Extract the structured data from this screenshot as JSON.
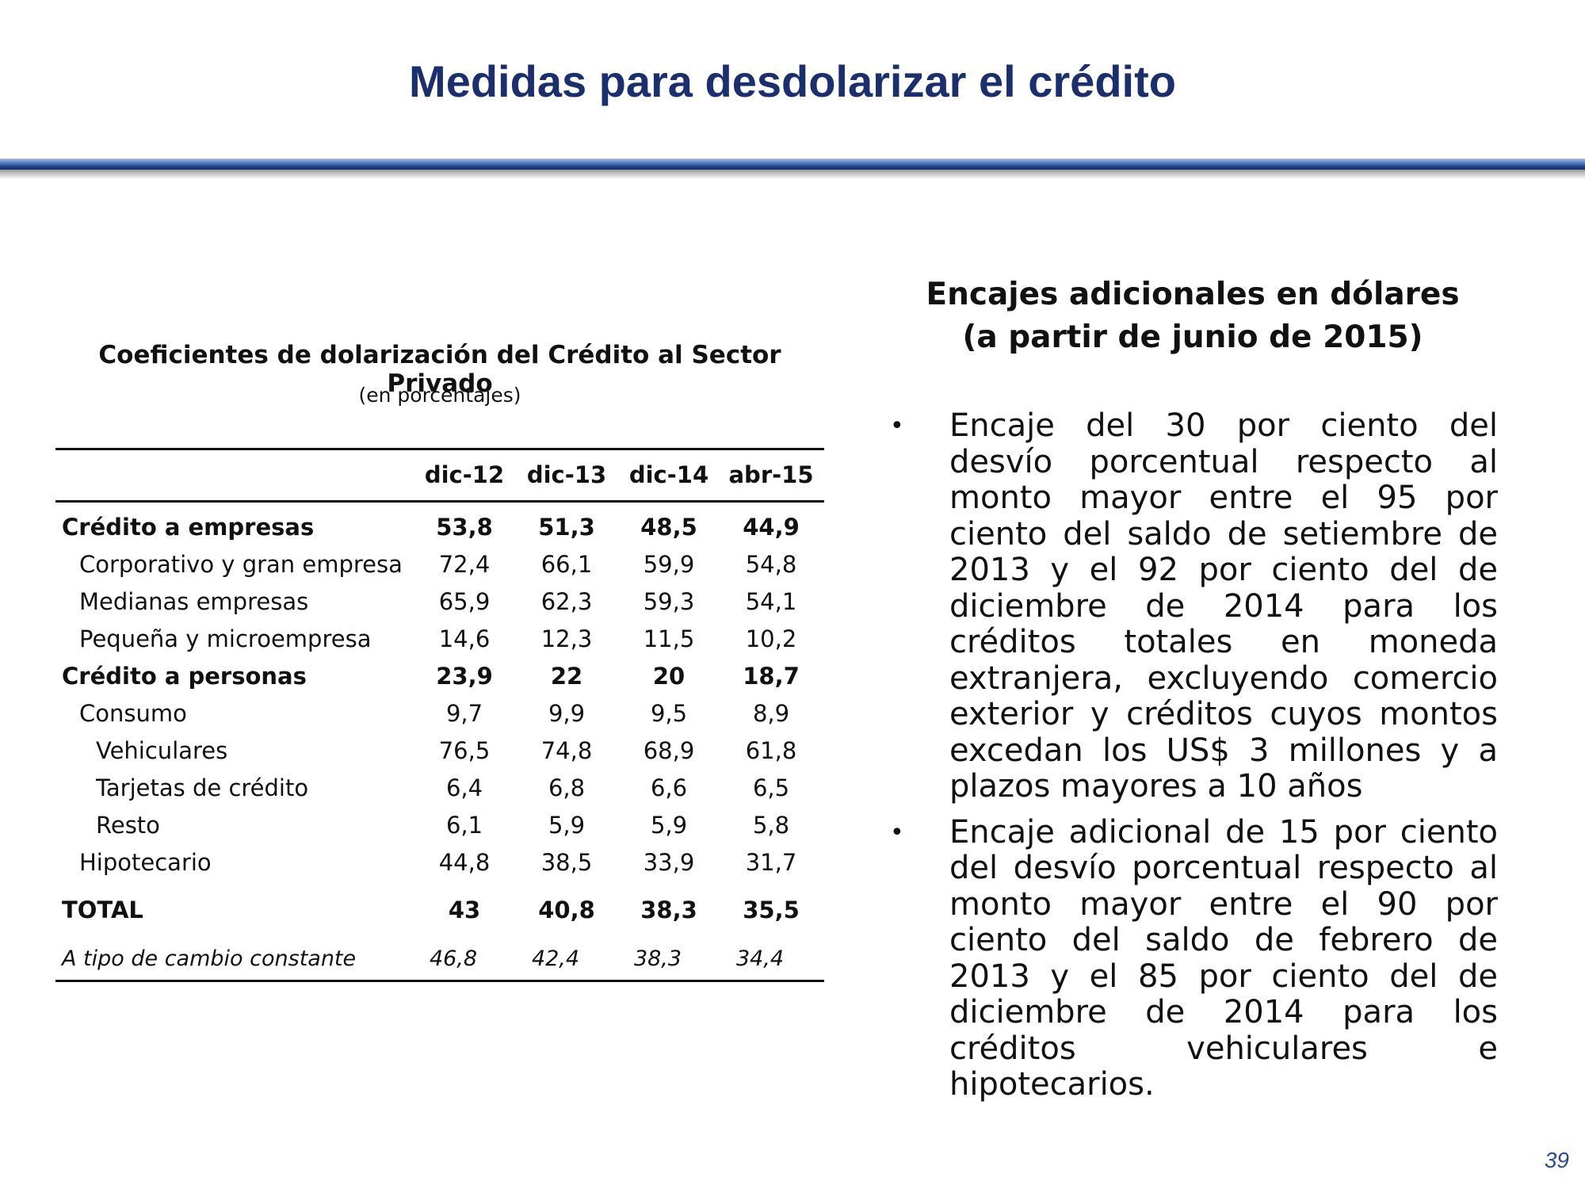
{
  "slide": {
    "title": "Medidas para desdolarizar el crédito",
    "page_number": "39"
  },
  "table": {
    "title": "Coeficientes de dolarización del Crédito al Sector Privado",
    "subtitle": "(en porcentajes)",
    "columns": [
      "dic-12",
      "dic-13",
      "dic-14",
      "abr-15"
    ],
    "rows": [
      {
        "label": "Crédito a empresas",
        "values": [
          "53,8",
          "51,3",
          "48,5",
          "44,9"
        ]
      },
      {
        "label": "Corporativo y gran empresa",
        "values": [
          "72,4",
          "66,1",
          "59,9",
          "54,8"
        ]
      },
      {
        "label": "Medianas empresas",
        "values": [
          "65,9",
          "62,3",
          "59,3",
          "54,1"
        ]
      },
      {
        "label": "Pequeña y microempresa",
        "values": [
          "14,6",
          "12,3",
          "11,5",
          "10,2"
        ]
      },
      {
        "label": "Crédito a personas",
        "values": [
          "23,9",
          "22",
          "20",
          "18,7"
        ]
      },
      {
        "label": "Consumo",
        "values": [
          "9,7",
          "9,9",
          "9,5",
          "8,9"
        ]
      },
      {
        "label": "Vehiculares",
        "values": [
          "76,5",
          "74,8",
          "68,9",
          "61,8"
        ]
      },
      {
        "label": "Tarjetas de crédito",
        "values": [
          "6,4",
          "6,8",
          "6,6",
          "6,5"
        ]
      },
      {
        "label": "Resto",
        "values": [
          "6,1",
          "5,9",
          "5,9",
          "5,8"
        ]
      },
      {
        "label": "Hipotecario",
        "values": [
          "44,8",
          "38,5",
          "33,9",
          "31,7"
        ]
      },
      {
        "label": "TOTAL",
        "values": [
          "43",
          "40,8",
          "38,3",
          "35,5"
        ]
      },
      {
        "label": "A tipo de cambio constante",
        "values": [
          "46,8",
          "42,4",
          "38,3",
          "34,4"
        ]
      }
    ]
  },
  "right": {
    "title_line1": "Encajes adicionales en dólares",
    "title_line2": "(a partir de junio de 2015)",
    "bullet_symbol": "•",
    "bullets": [
      "Encaje del 30 por ciento del desvío porcentual respecto al monto mayor entre el 95 por ciento del saldo de setiembre de 2013 y el 92 por ciento del de diciembre de 2014 para los créditos totales en moneda extranjera, excluyendo comercio exterior y créditos cuyos montos excedan los US$ 3 millones y a plazos mayores a 10 años",
      "Encaje adicional de 15 por ciento del desvío porcentual respecto al monto mayor entre el 90 por ciento del saldo de febrero de 2013 y el 85 por ciento del de diciembre de 2014 para los créditos vehiculares e hipotecarios."
    ]
  }
}
